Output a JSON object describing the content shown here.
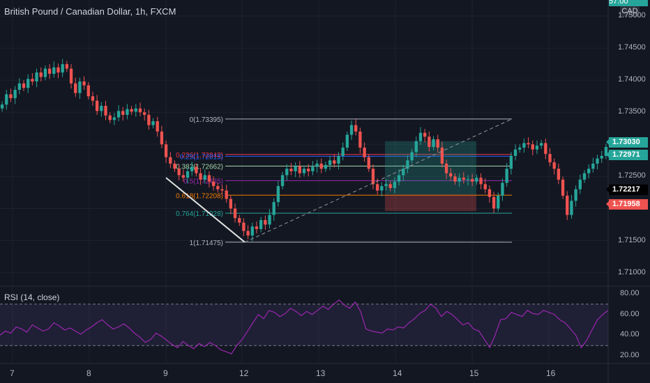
{
  "header": {
    "symbol_title": "British Pound / Canadian Dollar, 1h, FXCM",
    "currency_badge": "CAD"
  },
  "price_axis": {
    "ticks": [
      "1.75000",
      "1.74500",
      "1.74000",
      "1.73500",
      "1.73000",
      "1.72500",
      "1.72000",
      "1.71500",
      "1.71000"
    ],
    "range": [
      1.708,
      1.7525
    ],
    "tags": [
      {
        "label": "1.73030",
        "color": "#26a69a",
        "text_color": "#ffffff"
      },
      {
        "label": "1.72971",
        "color": "#26a69a",
        "text_color": "#ffffff"
      },
      {
        "label": "1.72217",
        "color": "#000000",
        "text_color": "#ffffff"
      },
      {
        "label": "1.71958",
        "color": "#ef5350",
        "text_color": "#ffffff"
      }
    ],
    "top_partial_tag": "57:00"
  },
  "time_axis": {
    "labels": [
      "7",
      "8",
      "9",
      "12",
      "13",
      "14",
      "15",
      "16"
    ]
  },
  "fibonacci": {
    "levels": [
      {
        "ratio": "0",
        "price": 1.73395,
        "label": "0(1.73395)",
        "color": "#b2b5be"
      },
      {
        "ratio": "0.236",
        "price": 1.72843,
        "label": "0.236(1.72843)",
        "color": "#f23645"
      },
      {
        "ratio": "0.25",
        "price": 1.72815,
        "label": "0.25(1.72815)",
        "color": "#2962ff"
      },
      {
        "ratio": "0.382",
        "price": 1.72662,
        "label": "0.382(1.72662)",
        "color": "#a5d6a7"
      },
      {
        "ratio": "0.5",
        "price": 1.72435,
        "label": "0.5(1.72435)",
        "color": "#9c27b0"
      },
      {
        "ratio": "0.618",
        "price": 1.72208,
        "label": "0.618(1.72208)",
        "color": "#f57c00"
      },
      {
        "ratio": "0.764",
        "price": 1.71928,
        "label": "0.764(1.71928)",
        "color": "#26a69a"
      },
      {
        "ratio": "1",
        "price": 1.71475,
        "label": "1(1.71475)",
        "color": "#b2b5be"
      }
    ]
  },
  "rsi": {
    "label": "RSI (14, close)",
    "ticks": [
      "80.00",
      "60.00",
      "40.00",
      "20.00"
    ],
    "upper_band": 70,
    "lower_band": 30,
    "line_color": "#9c27b0",
    "values": [
      40,
      44,
      42,
      48,
      46,
      43,
      50,
      47,
      44,
      46,
      52,
      49,
      45,
      47,
      44,
      41,
      45,
      48,
      52,
      55,
      50,
      46,
      48,
      51,
      47,
      42,
      38,
      33,
      36,
      42,
      39,
      35,
      31,
      28,
      34,
      30,
      27,
      32,
      29,
      33,
      30,
      26,
      24,
      22,
      30,
      36,
      44,
      52,
      60,
      56,
      64,
      62,
      58,
      61,
      66,
      63,
      59,
      63,
      60,
      64,
      68,
      65,
      70,
      74,
      69,
      66,
      72,
      63,
      46,
      44,
      43,
      42,
      46,
      45,
      48,
      47,
      52,
      56,
      61,
      64,
      70,
      66,
      58,
      63,
      60,
      55,
      50,
      52,
      46,
      44,
      36,
      28,
      40,
      55,
      56,
      62,
      60,
      58,
      64,
      61,
      60,
      64,
      62,
      60,
      55,
      52,
      46,
      40,
      28,
      35,
      45,
      55,
      60,
      64
    ]
  },
  "chart_data": {
    "type": "candlestick",
    "title": "British Pound / Canadian Dollar, 1h, FXCM",
    "x_labels": [
      "7",
      "8",
      "9",
      "12",
      "13",
      "14",
      "15",
      "16"
    ],
    "y_range": [
      1.708,
      1.7525
    ],
    "close_path": [
      1.7362,
      1.7378,
      1.7372,
      1.7385,
      1.7395,
      1.7388,
      1.7402,
      1.7398,
      1.7412,
      1.7405,
      1.7418,
      1.741,
      1.742,
      1.7412,
      1.7425,
      1.7418,
      1.7395,
      1.738,
      1.7398,
      1.7392,
      1.7375,
      1.7368,
      1.7352,
      1.736,
      1.7345,
      1.7338,
      1.7342,
      1.7352,
      1.7346,
      1.7355,
      1.7351,
      1.7356,
      1.735,
      1.7346,
      1.733,
      1.7336,
      1.732,
      1.73,
      1.728,
      1.727,
      1.7262,
      1.7252,
      1.7248,
      1.7258,
      1.7265,
      1.7255,
      1.7245,
      1.7252,
      1.7242,
      1.7235,
      1.723,
      1.7228,
      1.7215,
      1.72,
      1.7185,
      1.7178,
      1.7165,
      1.7158,
      1.7172,
      1.7168,
      1.7182,
      1.7175,
      1.719,
      1.721,
      1.7235,
      1.7252,
      1.7262,
      1.7258,
      1.7266,
      1.7255,
      1.7262,
      1.7258,
      1.7265,
      1.727,
      1.7262,
      1.7268,
      1.7275,
      1.727,
      1.7282,
      1.7295,
      1.7315,
      1.733,
      1.732,
      1.7295,
      1.728,
      1.7262,
      1.7238,
      1.7228,
      1.7235,
      1.7238,
      1.7232,
      1.7242,
      1.7252,
      1.7262,
      1.7275,
      1.7288,
      1.7305,
      1.7318,
      1.7312,
      1.7296,
      1.7308,
      1.7295,
      1.727,
      1.7255,
      1.725,
      1.7242,
      1.7248,
      1.7245,
      1.7246,
      1.7242,
      1.7248,
      1.7238,
      1.723,
      1.7218,
      1.72,
      1.722,
      1.724,
      1.7262,
      1.7282,
      1.7292,
      1.7295,
      1.7302,
      1.73,
      1.7292,
      1.7298,
      1.7302,
      1.7285,
      1.7272,
      1.7262,
      1.7245,
      1.722,
      1.719,
      1.7212,
      1.723,
      1.7245,
      1.7255,
      1.7262,
      1.727,
      1.7278,
      1.7282,
      1.7296
    ]
  },
  "colors": {
    "up": "#26a69a",
    "down": "#ef5350",
    "background": "#131722",
    "grid": "#1e222d"
  }
}
